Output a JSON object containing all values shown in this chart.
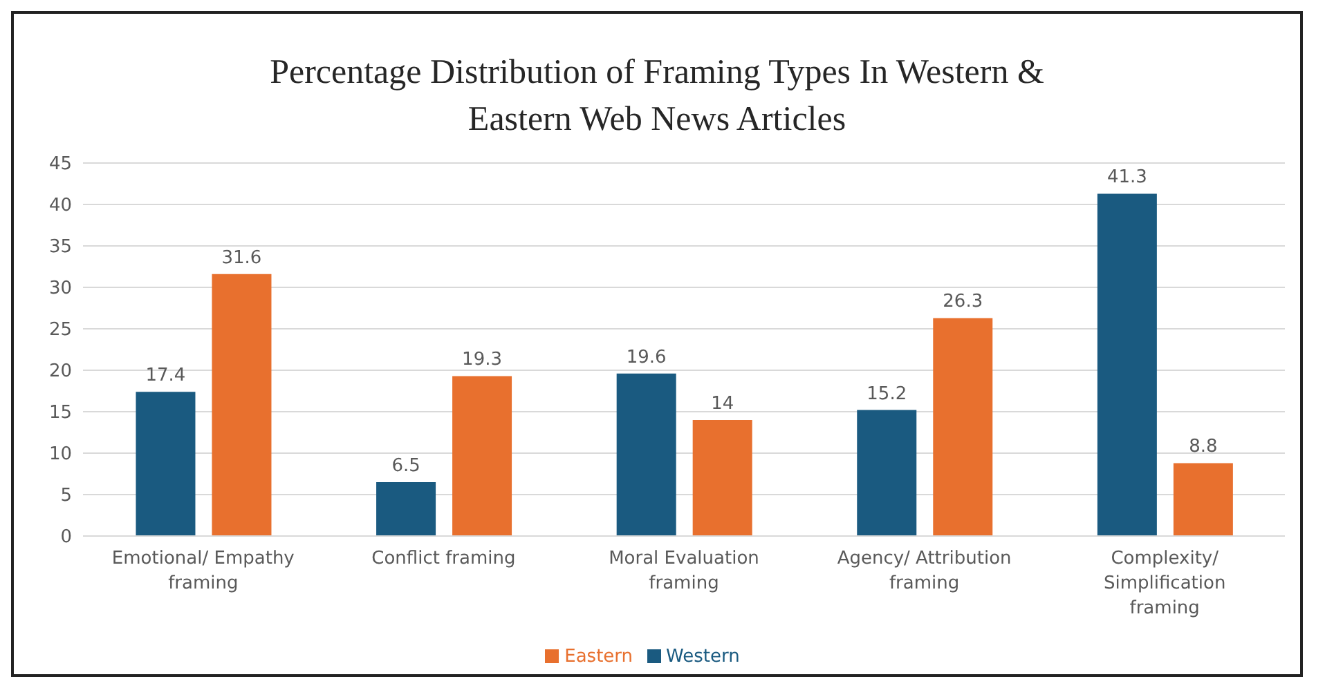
{
  "chart_data": {
    "type": "bar",
    "title": "Percentage Distribution of Framing Types In Western & Eastern Web News Articles",
    "categories": [
      "Emotional/ Empathy framing",
      "Conflict framing",
      "Moral Evaluation framing",
      "Agency/ Attribution framing",
      "Complexity/ Simplification framing"
    ],
    "series": [
      {
        "name": "Western",
        "color": "#1a5a80",
        "values": [
          17.4,
          6.5,
          19.6,
          15.2,
          41.3
        ]
      },
      {
        "name": "Eastern",
        "color": "#e8702e",
        "values": [
          31.6,
          19.3,
          14,
          26.3,
          8.8
        ]
      }
    ],
    "ylim": [
      0,
      45
    ],
    "yticks": [
      0,
      5,
      10,
      15,
      20,
      25,
      30,
      35,
      40,
      45
    ],
    "grid": "y",
    "legend": "bottom",
    "data_labels": true
  }
}
